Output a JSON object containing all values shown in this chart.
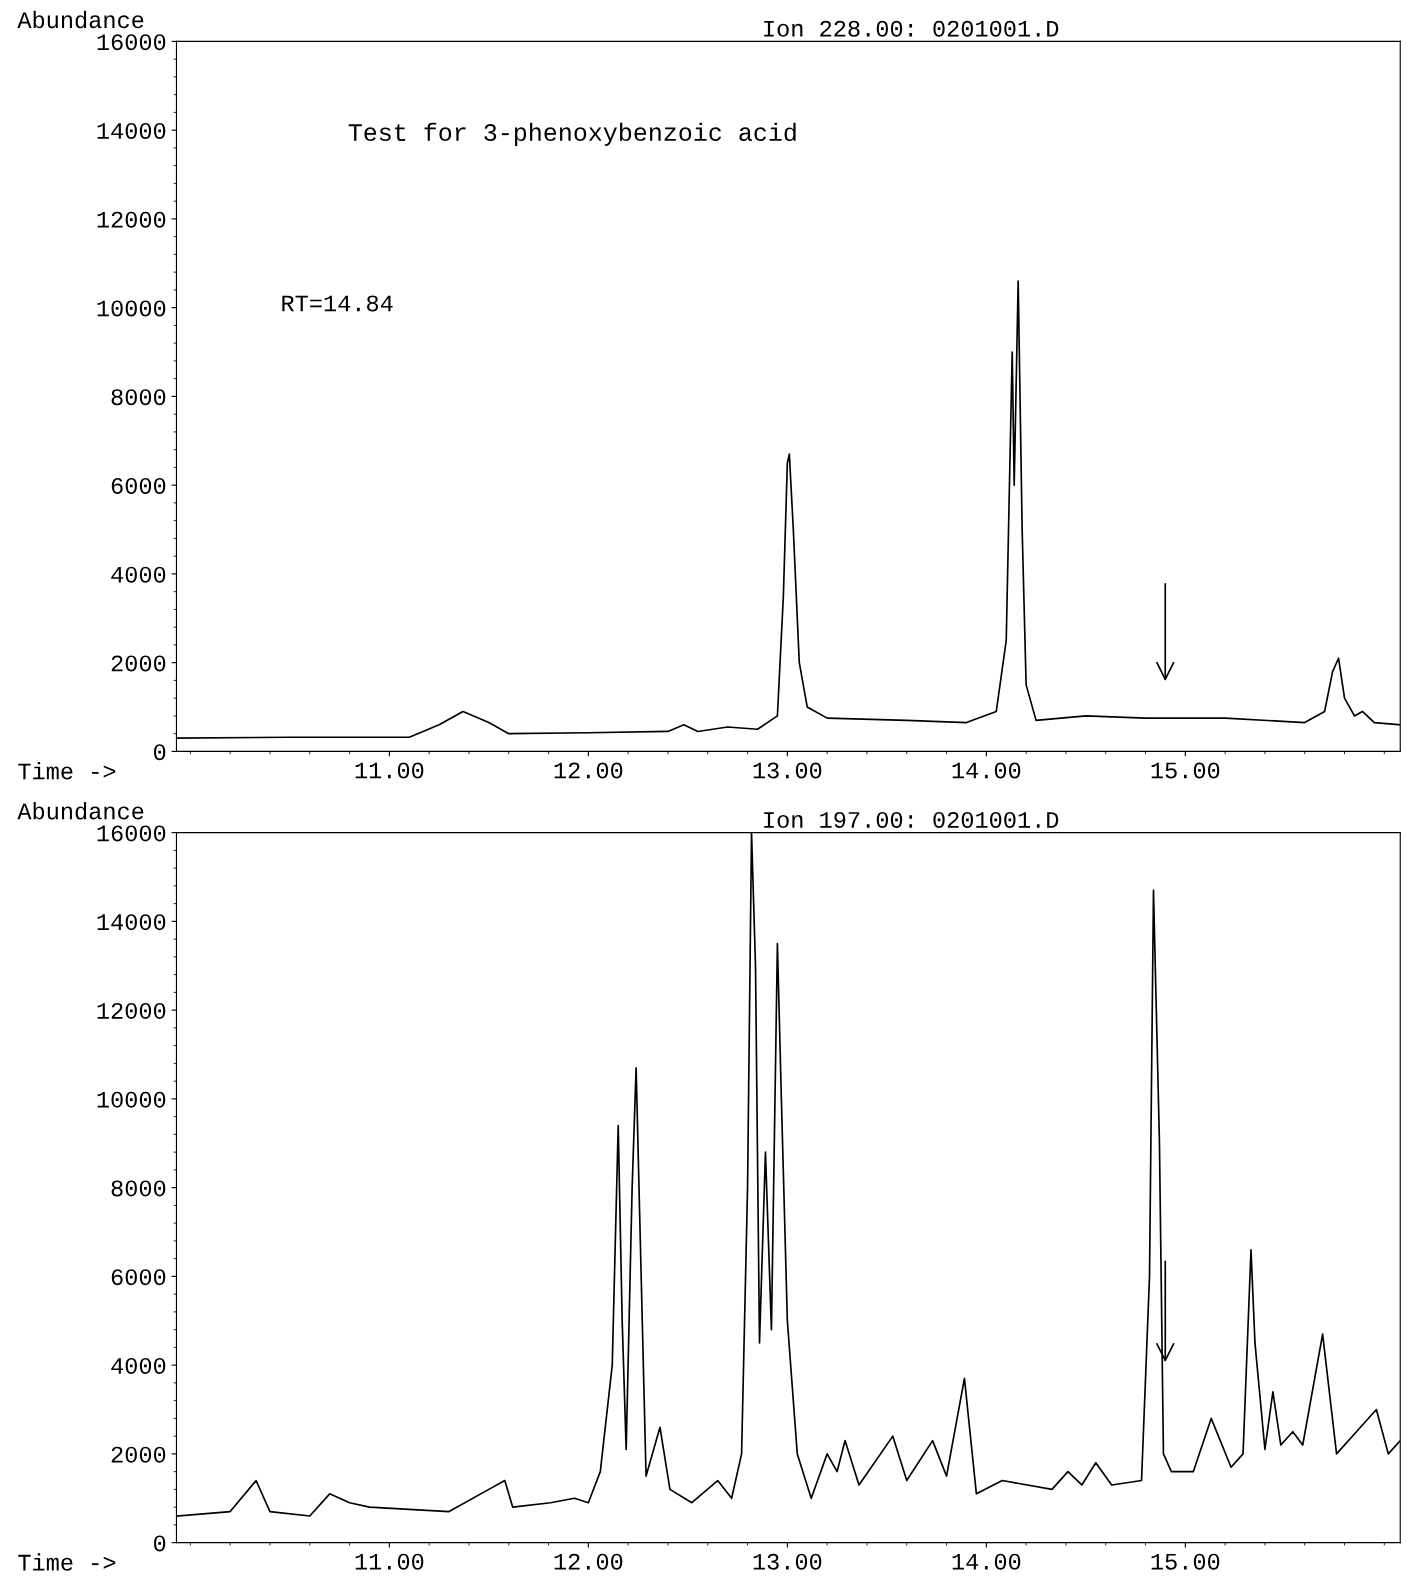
{
  "chart_data": [
    {
      "type": "line",
      "title": "Ion 228.00: 0201001.D",
      "xlabel": "Time ->",
      "ylabel": "Abundance",
      "annotations": [
        "Test for 3-phenoxybenzoic acid",
        "RT=14.84"
      ],
      "series": [
        {
          "color": "#000000",
          "x": [
            9.93,
            10.5,
            11.1,
            11.25,
            11.37,
            11.5,
            11.6,
            12.0,
            12.4,
            12.48,
            12.55,
            12.7,
            12.85,
            12.95,
            12.98,
            13.0,
            13.01,
            13.03,
            13.06,
            13.1,
            13.2,
            13.6,
            13.9,
            14.05,
            14.1,
            14.13,
            14.14,
            14.16,
            14.18,
            14.2,
            14.25,
            14.5,
            14.8,
            15.2,
            15.6,
            15.7,
            15.74,
            15.77,
            15.8,
            15.85,
            15.89,
            15.95,
            16.08
          ],
          "values": [
            300,
            320,
            320,
            600,
            900,
            650,
            400,
            420,
            450,
            600,
            450,
            550,
            500,
            800,
            3500,
            6500,
            6700,
            5000,
            2000,
            1000,
            750,
            700,
            650,
            900,
            2500,
            9000,
            6000,
            10600,
            5000,
            1500,
            700,
            800,
            750,
            750,
            650,
            900,
            1800,
            2100,
            1200,
            800,
            900,
            650,
            600
          ]
        }
      ],
      "xlim": [
        9.93,
        16.08
      ],
      "xticks": [
        {
          "value": 11,
          "label": "11.00"
        },
        {
          "value": 12,
          "label": "12.00"
        },
        {
          "value": 13,
          "label": "13.00"
        },
        {
          "value": 14,
          "label": "14.00"
        },
        {
          "value": 15,
          "label": "15.00"
        }
      ],
      "ylim": [
        0,
        16000
      ],
      "yticks": [
        0,
        2000,
        4000,
        6000,
        8000,
        10000,
        12000,
        14000,
        16000
      ],
      "grid": false,
      "legend": false,
      "marker": "none",
      "line_style": "solid"
    },
    {
      "type": "line",
      "title": "Ion 197.00: 0201001.D",
      "xlabel": "Time ->",
      "ylabel": "Abundance",
      "series": [
        {
          "color": "#000000",
          "x": [
            9.93,
            10.2,
            10.33,
            10.4,
            10.6,
            10.7,
            10.8,
            10.9,
            11.3,
            11.5,
            11.58,
            11.62,
            11.81,
            11.93,
            12.0,
            12.06,
            12.12,
            12.15,
            12.17,
            12.19,
            12.22,
            12.24,
            12.26,
            12.29,
            12.36,
            12.41,
            12.52,
            12.65,
            12.72,
            12.77,
            12.8,
            12.82,
            12.84,
            12.86,
            12.89,
            12.92,
            12.95,
            12.97,
            13.0,
            13.05,
            13.12,
            13.2,
            13.25,
            13.29,
            13.36,
            13.53,
            13.6,
            13.73,
            13.8,
            13.89,
            13.95,
            14.08,
            14.33,
            14.41,
            14.48,
            14.55,
            14.63,
            14.78,
            14.82,
            14.84,
            14.87,
            14.89,
            14.93,
            15.04,
            15.13,
            15.23,
            15.29,
            15.33,
            15.35,
            15.4,
            15.44,
            15.48,
            15.54,
            15.59,
            15.69,
            15.76,
            15.86,
            15.96,
            16.02,
            16.08
          ],
          "values": [
            600,
            700,
            1400,
            700,
            600,
            1100,
            900,
            800,
            700,
            1200,
            1400,
            800,
            900,
            1000,
            900,
            1600,
            4000,
            9400,
            5000,
            2100,
            8000,
            10700,
            7000,
            1500,
            2600,
            1200,
            900,
            1400,
            1000,
            2000,
            8000,
            16000,
            13000,
            4500,
            8800,
            4800,
            13500,
            10000,
            5000,
            2000,
            1000,
            2000,
            1600,
            2300,
            1300,
            2400,
            1400,
            2300,
            1500,
            3700,
            1100,
            1400,
            1200,
            1600,
            1300,
            1800,
            1300,
            1400,
            6000,
            14700,
            9000,
            2000,
            1600,
            1600,
            2800,
            1700,
            2000,
            6600,
            4500,
            2100,
            3400,
            2200,
            2500,
            2200,
            4700,
            2000,
            2500,
            3000,
            2000,
            2300
          ]
        }
      ],
      "xlim": [
        9.93,
        16.08
      ],
      "xticks": [
        {
          "value": 11,
          "label": "11.00"
        },
        {
          "value": 12,
          "label": "12.00"
        },
        {
          "value": 13,
          "label": "13.00"
        },
        {
          "value": 14,
          "label": "14.00"
        },
        {
          "value": 15,
          "label": "15.00"
        }
      ],
      "ylim": [
        0,
        16000
      ],
      "yticks": [
        0,
        2000,
        4000,
        6000,
        8000,
        10000,
        12000,
        14000,
        16000
      ],
      "grid": false,
      "legend": false,
      "marker": "none",
      "line_style": "solid"
    }
  ]
}
